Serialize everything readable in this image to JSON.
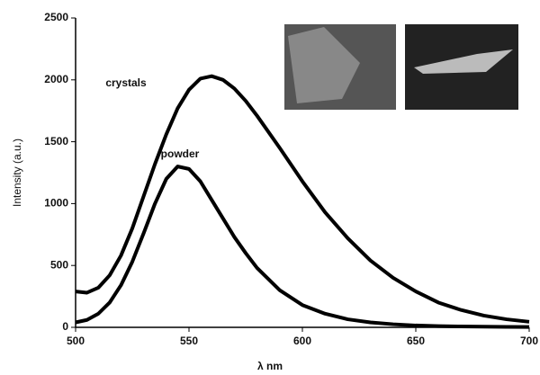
{
  "chart_data": {
    "type": "line",
    "x_label": "λ nm",
    "y_label": "Intensity (a.u.)",
    "x": [
      500,
      505,
      510,
      515,
      520,
      525,
      530,
      535,
      540,
      545,
      550,
      555,
      560,
      565,
      570,
      575,
      580,
      590,
      600,
      610,
      620,
      630,
      640,
      650,
      660,
      670,
      680,
      690,
      700
    ],
    "series": [
      {
        "name": "crystals",
        "color": "#000000",
        "values": [
          290,
          280,
          320,
          420,
          580,
          800,
          1060,
          1320,
          1560,
          1770,
          1920,
          2010,
          2030,
          2000,
          1930,
          1830,
          1710,
          1450,
          1180,
          930,
          720,
          540,
          400,
          290,
          200,
          140,
          95,
          65,
          45
        ]
      },
      {
        "name": "powder",
        "color": "#000000",
        "values": [
          40,
          60,
          110,
          200,
          340,
          530,
          760,
          1000,
          1200,
          1300,
          1280,
          1180,
          1030,
          880,
          730,
          600,
          480,
          300,
          180,
          110,
          65,
          40,
          25,
          15,
          10,
          7,
          5,
          4,
          3
        ]
      }
    ],
    "xlim": [
      500,
      700
    ],
    "xticks": [
      500,
      550,
      600,
      650,
      700
    ],
    "ylim": [
      0,
      2500
    ],
    "yticks": [
      0,
      500,
      1000,
      1500,
      2000,
      2500
    ],
    "grid": false
  }
}
